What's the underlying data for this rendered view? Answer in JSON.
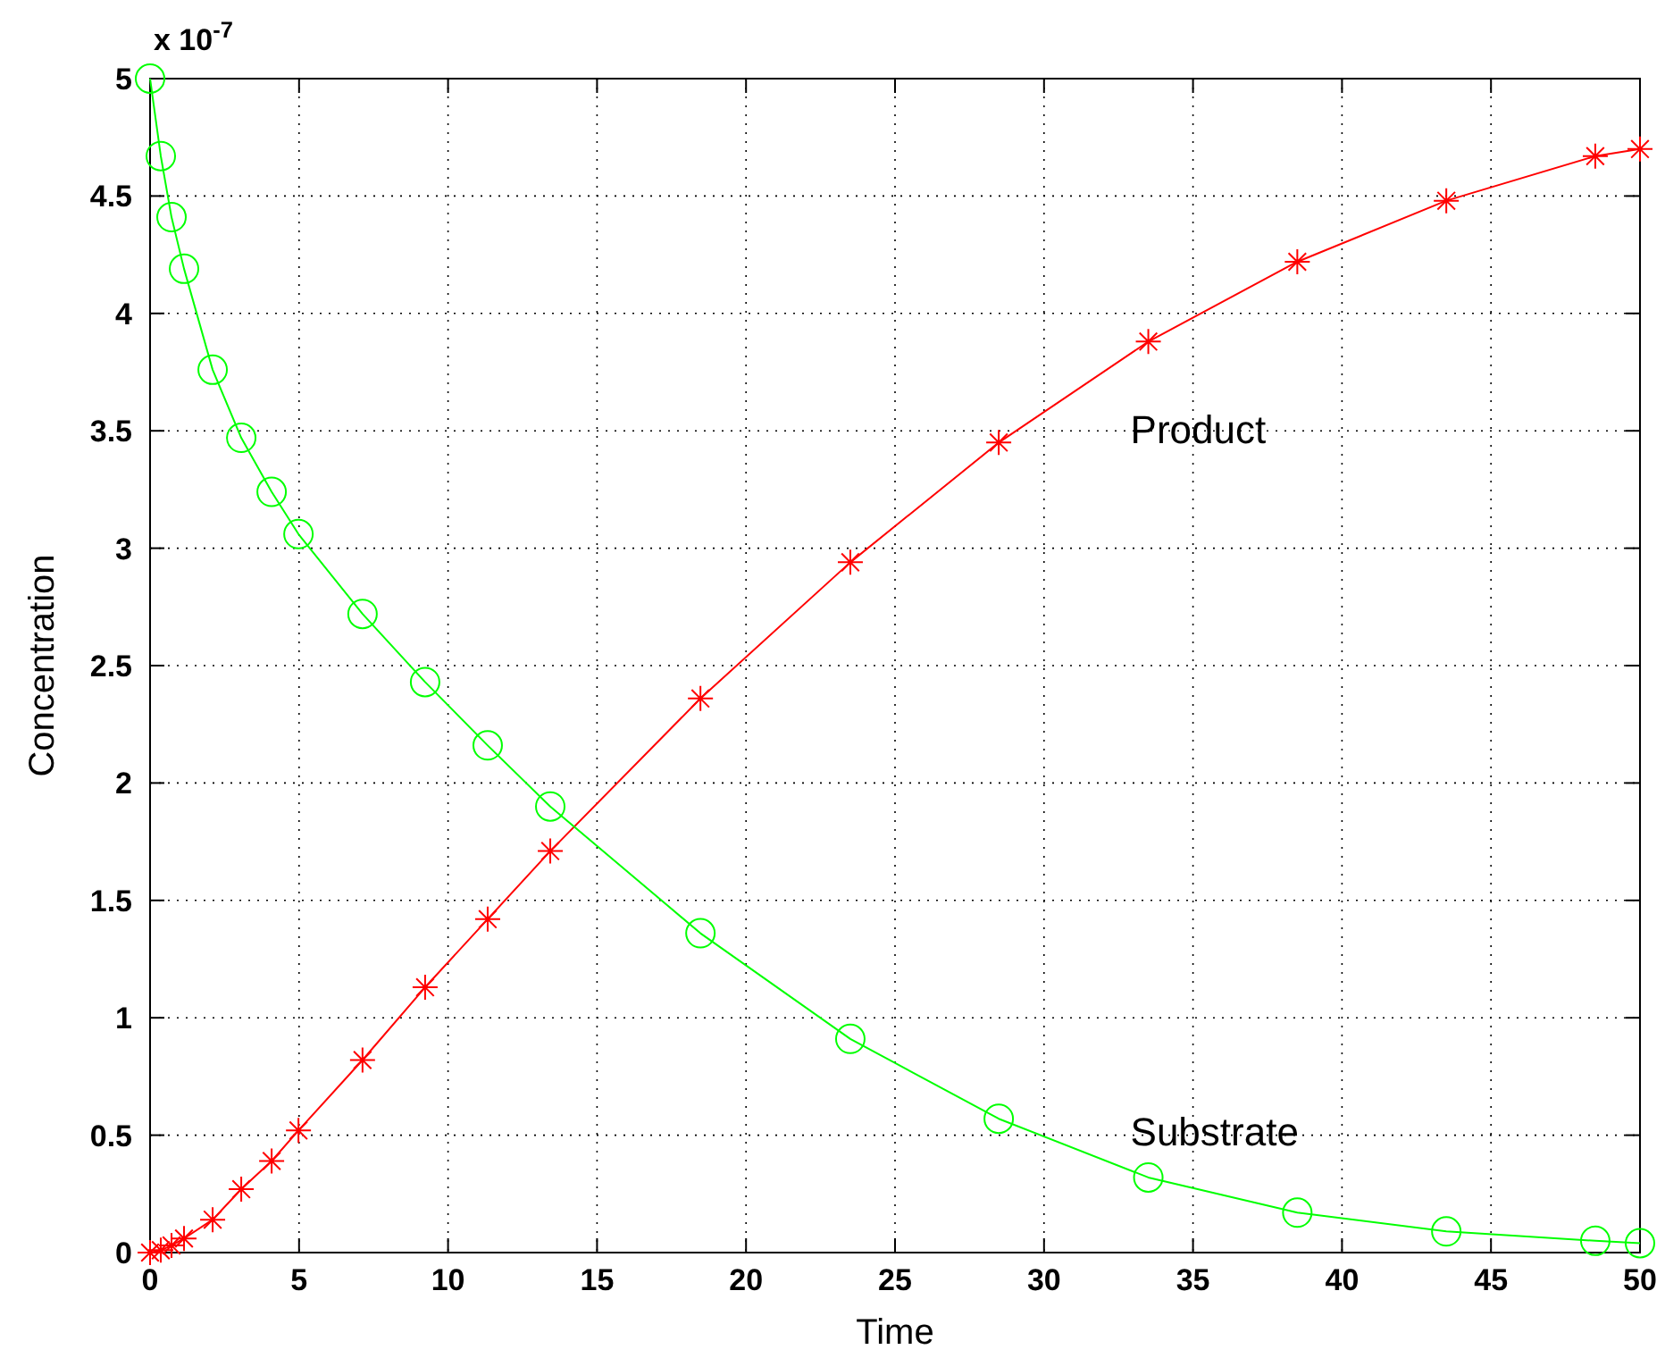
{
  "chart_data": {
    "type": "line",
    "xlabel": "Time",
    "ylabel": "Concentration",
    "annotations": [
      "x 10$^{-7}$"
    ],
    "x": [
      0,
      0.36,
      0.72,
      1.14,
      2.1,
      3.06,
      4.08,
      4.98,
      7.13,
      9.23,
      11.33,
      13.43,
      18.47,
      23.5,
      28.48,
      33.5,
      38.5,
      43.5,
      48.5,
      50
    ],
    "series": [
      {
        "name": "Product",
        "color": "#ff0000",
        "marker": "cross",
        "values": [
          0,
          0.01,
          0.03,
          0.06,
          0.14,
          0.27,
          0.39,
          0.52,
          0.82,
          1.13,
          1.42,
          1.71,
          2.36,
          2.94,
          3.45,
          3.88,
          4.22,
          4.48,
          4.67,
          4.7
        ]
      },
      {
        "name": "Substrate",
        "color": "#00ff00",
        "marker": "circle",
        "values": [
          5.0,
          4.67,
          4.41,
          4.19,
          3.76,
          3.47,
          3.24,
          3.06,
          2.72,
          2.43,
          2.16,
          1.9,
          1.36,
          0.91,
          0.57,
          0.32,
          0.17,
          0.09,
          0.05,
          0.04
        ]
      }
    ],
    "xlim": [
      0,
      50
    ],
    "xticks": [
      0,
      5,
      10,
      15,
      20,
      25,
      30,
      35,
      40,
      45,
      50
    ],
    "ylim": [
      0,
      5
    ],
    "yticks": [
      0,
      0.5,
      1,
      1.5,
      2,
      2.5,
      3,
      3.5,
      4,
      4.5,
      5
    ],
    "grid": true,
    "line_style": "solid"
  }
}
